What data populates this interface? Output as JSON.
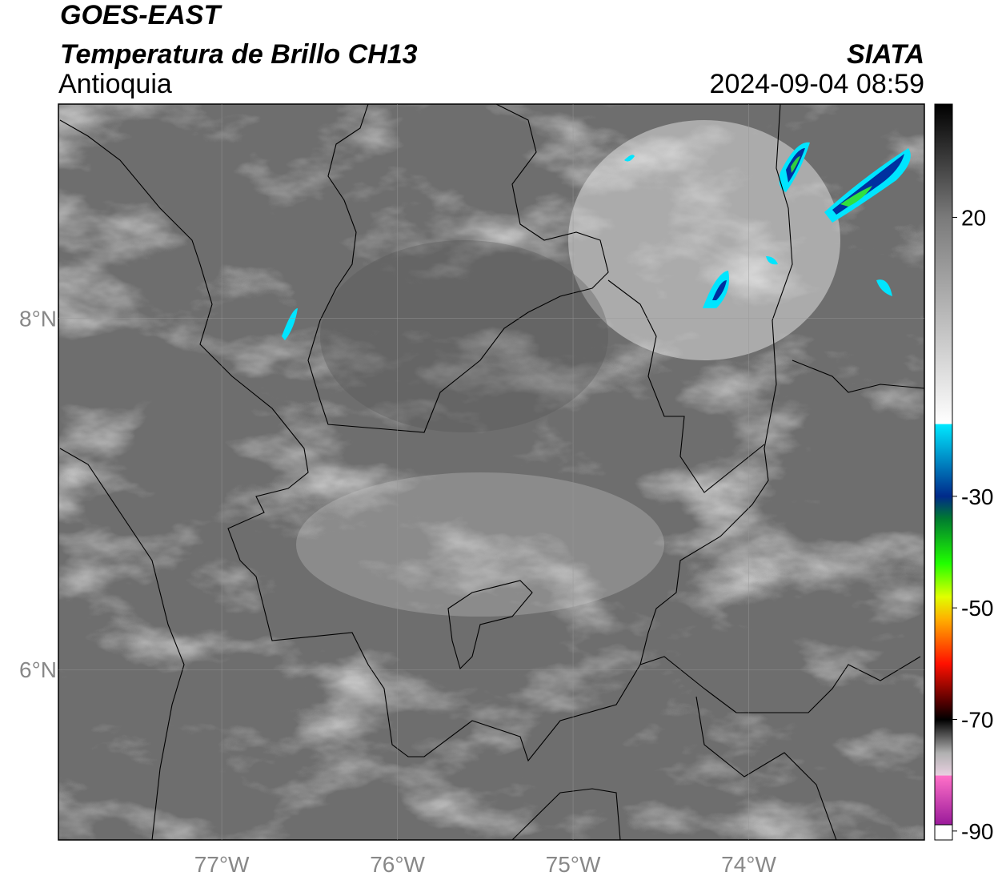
{
  "header": {
    "satellite": "GOES-EAST",
    "product": "Temperatura de Brillo CH13",
    "region": "Antioquia",
    "agency": "SIATA",
    "datetime": "2024-09-04 08:59"
  },
  "map": {
    "lonlim": [
      -77.93,
      -73.0
    ],
    "latlim": [
      5.03,
      9.22
    ],
    "lon_ticks": [
      {
        "value": -77,
        "label": "77°W"
      },
      {
        "value": -76,
        "label": "76°W"
      },
      {
        "value": -75,
        "label": "75°W"
      },
      {
        "value": -74,
        "label": "74°W"
      }
    ],
    "lat_ticks": [
      {
        "value": 8,
        "label": "8°N"
      },
      {
        "value": 6,
        "label": "6°N"
      }
    ],
    "grid": true
  },
  "colorbar": {
    "clim": [
      -91.6,
      40.3
    ],
    "ticks": [
      20,
      -30,
      -50,
      -70,
      -90
    ],
    "colormap": [
      {
        "value": 40.3,
        "color": "#000000"
      },
      {
        "value": 20,
        "color": "#7a7a7a"
      },
      {
        "value": -17,
        "color": "#ffffff"
      },
      {
        "value": -17.1,
        "color": "#00e8ff"
      },
      {
        "value": -30,
        "color": "#002a8a"
      },
      {
        "value": -34,
        "color": "#007a30"
      },
      {
        "value": -42,
        "color": "#20ff00"
      },
      {
        "value": -48,
        "color": "#e0ff00"
      },
      {
        "value": -52,
        "color": "#ffb000"
      },
      {
        "value": -60,
        "color": "#ff1000"
      },
      {
        "value": -67,
        "color": "#500000"
      },
      {
        "value": -70,
        "color": "#000000"
      },
      {
        "value": -76,
        "color": "#b0b0b0"
      },
      {
        "value": -80,
        "color": "#e8d0e0"
      },
      {
        "value": -80.1,
        "color": "#ff70c8"
      },
      {
        "value": -90,
        "color": "#9a1a9a"
      }
    ]
  }
}
